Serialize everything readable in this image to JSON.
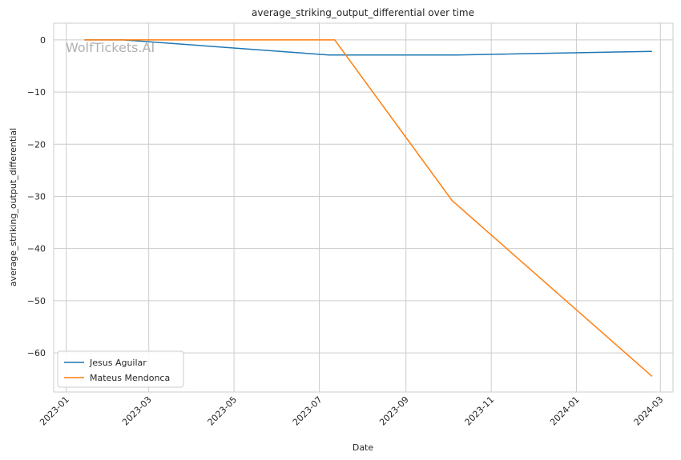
{
  "watermark": "WolfTickets.AI",
  "chart_data": {
    "type": "line",
    "title": "average_striking_output_differential over time",
    "xlabel": "Date",
    "ylabel": "average_striking_output_differential",
    "x_ticks": [
      "2023-01",
      "2023-03",
      "2023-05",
      "2023-07",
      "2023-09",
      "2023-11",
      "2024-01",
      "2024-03"
    ],
    "y_ticks": [
      0,
      -10,
      -20,
      -30,
      -40,
      -50,
      -60
    ],
    "xlim": [
      "2022-12-23",
      "2024-03-10"
    ],
    "ylim": [
      -67.5,
      3.2
    ],
    "grid": true,
    "legend_position": "lower-left",
    "series": [
      {
        "name": "Jesus Aguilar",
        "color": "#1f77b4",
        "points": [
          {
            "x": "2023-01-14",
            "y": 0
          },
          {
            "x": "2023-02-11",
            "y": 0
          },
          {
            "x": "2023-07-08",
            "y": -2.9
          },
          {
            "x": "2023-10-07",
            "y": -2.9
          },
          {
            "x": "2024-02-24",
            "y": -2.2
          }
        ]
      },
      {
        "name": "Mateus Mendonca",
        "color": "#ff7f0e",
        "points": [
          {
            "x": "2023-01-14",
            "y": 0
          },
          {
            "x": "2023-07-12",
            "y": 0
          },
          {
            "x": "2023-10-04",
            "y": -30.8
          },
          {
            "x": "2024-02-24",
            "y": -64.5
          }
        ]
      }
    ]
  }
}
